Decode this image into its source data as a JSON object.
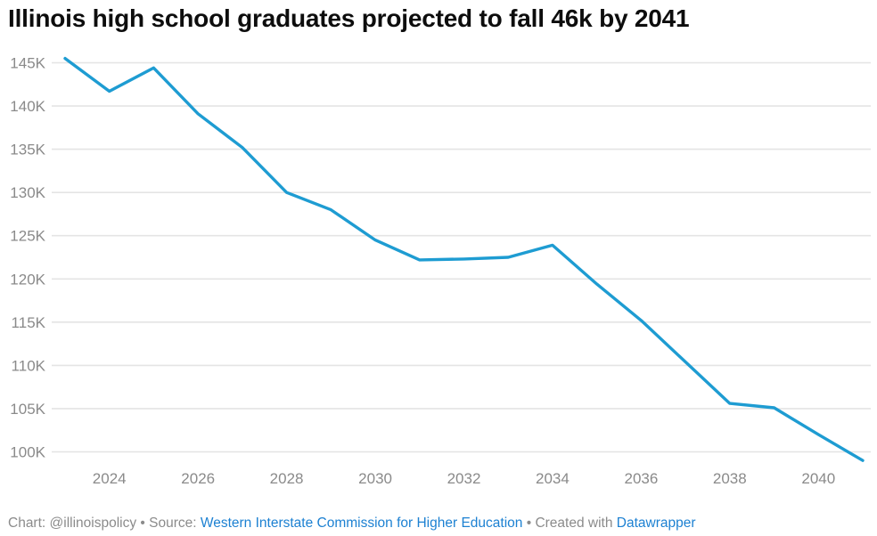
{
  "title": "Illinois high school graduates projected to fall 46k by 2041",
  "footer": {
    "credit": "Chart: @illinoispolicy • Source: ",
    "source_link": "Western Interstate Commission for Higher Education",
    "separator": " • Created with ",
    "tool_link": "Datawrapper"
  },
  "colors": {
    "line": "#1e9cd2",
    "grid": "#e4e4e4",
    "axis_text": "#8a8a8a",
    "footer_text": "#8b8b8b",
    "link": "#1d81d2",
    "title_text": "#0d0d0d"
  },
  "chart_data": {
    "type": "line",
    "title": "Illinois high school graduates projected to fall 46k by 2041",
    "series_name": "Illinois high school graduates",
    "x": [
      2023,
      2024,
      2025,
      2026,
      2027,
      2028,
      2029,
      2030,
      2031,
      2032,
      2033,
      2034,
      2035,
      2036,
      2037,
      2038,
      2039,
      2040,
      2041
    ],
    "values": [
      145500,
      141700,
      144400,
      139100,
      135200,
      130000,
      128000,
      124500,
      122200,
      122300,
      122500,
      123900,
      119400,
      115200,
      110400,
      105600,
      105100,
      102000,
      99000
    ],
    "xlabel": "",
    "ylabel": "",
    "ylim": [
      100000,
      145000
    ],
    "grid": "horizontal",
    "legend": "none",
    "y_ticks": [
      {
        "value": 145000,
        "label": "145K"
      },
      {
        "value": 140000,
        "label": "140K"
      },
      {
        "value": 135000,
        "label": "135K"
      },
      {
        "value": 130000,
        "label": "130K"
      },
      {
        "value": 125000,
        "label": "125K"
      },
      {
        "value": 120000,
        "label": "120K"
      },
      {
        "value": 115000,
        "label": "115K"
      },
      {
        "value": 110000,
        "label": "110K"
      },
      {
        "value": 105000,
        "label": "105K"
      },
      {
        "value": 100000,
        "label": "100K"
      }
    ],
    "x_ticks": [
      2024,
      2026,
      2028,
      2030,
      2032,
      2034,
      2036,
      2038,
      2040
    ]
  }
}
